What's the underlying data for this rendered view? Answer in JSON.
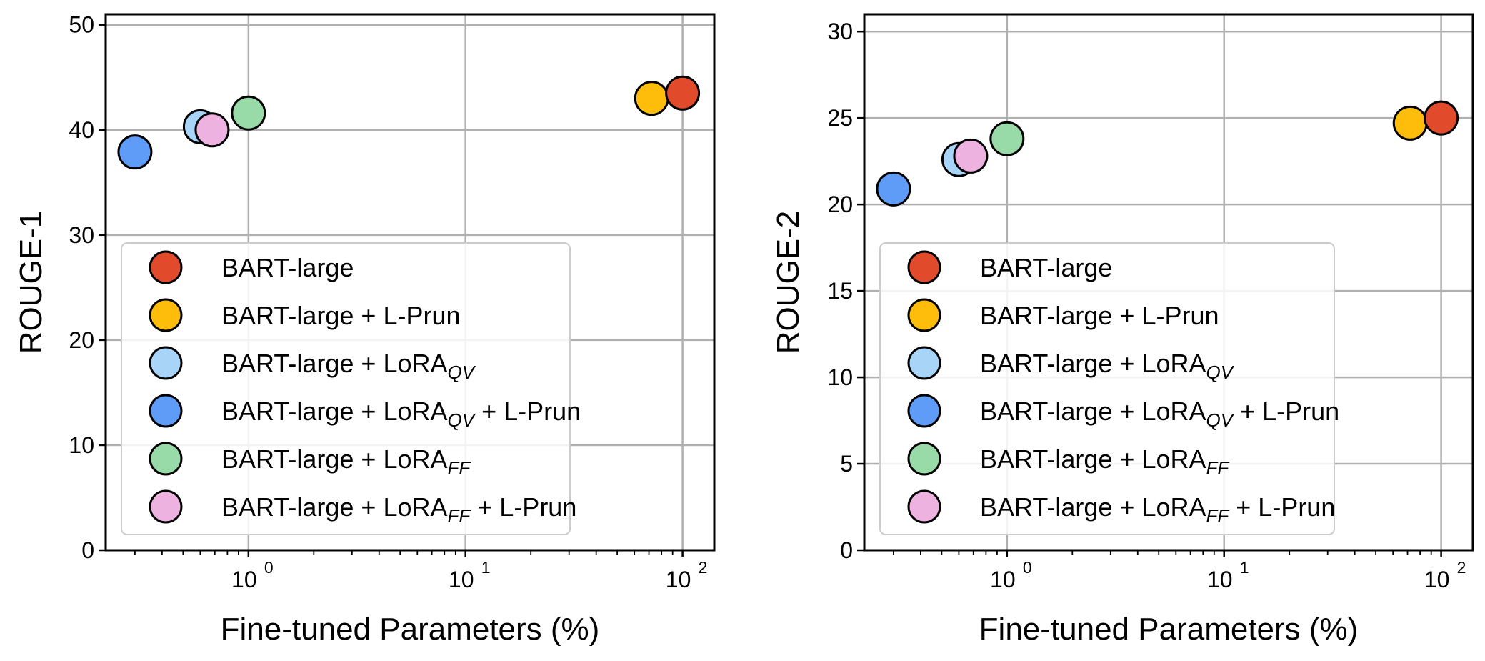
{
  "chart_data": [
    {
      "type": "scatter",
      "xlabel": "Fine-tuned Parameters (%)",
      "ylabel": "ROUGE-1",
      "xscale": "log",
      "xticks": [
        {
          "base": "10",
          "exp": "0"
        },
        {
          "base": "10",
          "exp": "1"
        },
        {
          "base": "10",
          "exp": "2"
        }
      ],
      "ylim": [
        0,
        51
      ],
      "yticks": [
        "0",
        "10",
        "20",
        "30",
        "40",
        "50"
      ],
      "grid": true,
      "legend_position": "lower-left",
      "series": [
        {
          "name": "BART-large",
          "color": "#e24a2c",
          "x": [
            100
          ],
          "y": [
            43.5
          ]
        },
        {
          "name": "BART-large + L-Prun",
          "color": "#fdbd0a",
          "x": [
            72
          ],
          "y": [
            43.0
          ]
        },
        {
          "name": "BART-large + LoRA_QV",
          "color": "#a8d4f7",
          "x": [
            0.6
          ],
          "y": [
            40.3
          ]
        },
        {
          "name": "BART-large + LoRA_QV + L-Prun",
          "color": "#5e9cf7",
          "x": [
            0.3
          ],
          "y": [
            37.9
          ]
        },
        {
          "name": "BART-large + LoRA_FF",
          "color": "#98dba8",
          "x": [
            1.0
          ],
          "y": [
            41.6
          ]
        },
        {
          "name": "BART-large + LoRA_FF + L-Prun",
          "color": "#eeb2e0",
          "x": [
            0.68
          ],
          "y": [
            40.0
          ]
        }
      ]
    },
    {
      "type": "scatter",
      "xlabel": "Fine-tuned Parameters (%)",
      "ylabel": "ROUGE-2",
      "xscale": "log",
      "xticks": [
        {
          "base": "10",
          "exp": "0"
        },
        {
          "base": "10",
          "exp": "1"
        },
        {
          "base": "10",
          "exp": "2"
        }
      ],
      "ylim": [
        0,
        31
      ],
      "yticks": [
        "0",
        "5",
        "10",
        "15",
        "20",
        "25",
        "30"
      ],
      "grid": true,
      "legend_position": "lower-left",
      "series": [
        {
          "name": "BART-large",
          "color": "#e24a2c",
          "x": [
            100
          ],
          "y": [
            25.0
          ]
        },
        {
          "name": "BART-large + L-Prun",
          "color": "#fdbd0a",
          "x": [
            72
          ],
          "y": [
            24.7
          ]
        },
        {
          "name": "BART-large + LoRA_QV",
          "color": "#a8d4f7",
          "x": [
            0.6
          ],
          "y": [
            22.6
          ]
        },
        {
          "name": "BART-large + LoRA_QV + L-Prun",
          "color": "#5e9cf7",
          "x": [
            0.3
          ],
          "y": [
            20.9
          ]
        },
        {
          "name": "BART-large + LoRA_FF",
          "color": "#98dba8",
          "x": [
            1.0
          ],
          "y": [
            23.8
          ]
        },
        {
          "name": "BART-large + LoRA_FF + L-Prun",
          "color": "#eeb2e0",
          "x": [
            0.68
          ],
          "y": [
            22.8
          ]
        }
      ]
    }
  ],
  "legend": [
    {
      "main": "BART-large",
      "sub": "",
      "tail": ""
    },
    {
      "main": "BART-large + L-Prun",
      "sub": "",
      "tail": ""
    },
    {
      "main": "BART-large + LoRA",
      "sub": "QV",
      "tail": ""
    },
    {
      "main": "BART-large + LoRA",
      "sub": "QV",
      "tail": " + L-Prun"
    },
    {
      "main": "BART-large + LoRA",
      "sub": "FF",
      "tail": ""
    },
    {
      "main": "BART-large + LoRA",
      "sub": "FF",
      "tail": " + L-Prun"
    }
  ]
}
